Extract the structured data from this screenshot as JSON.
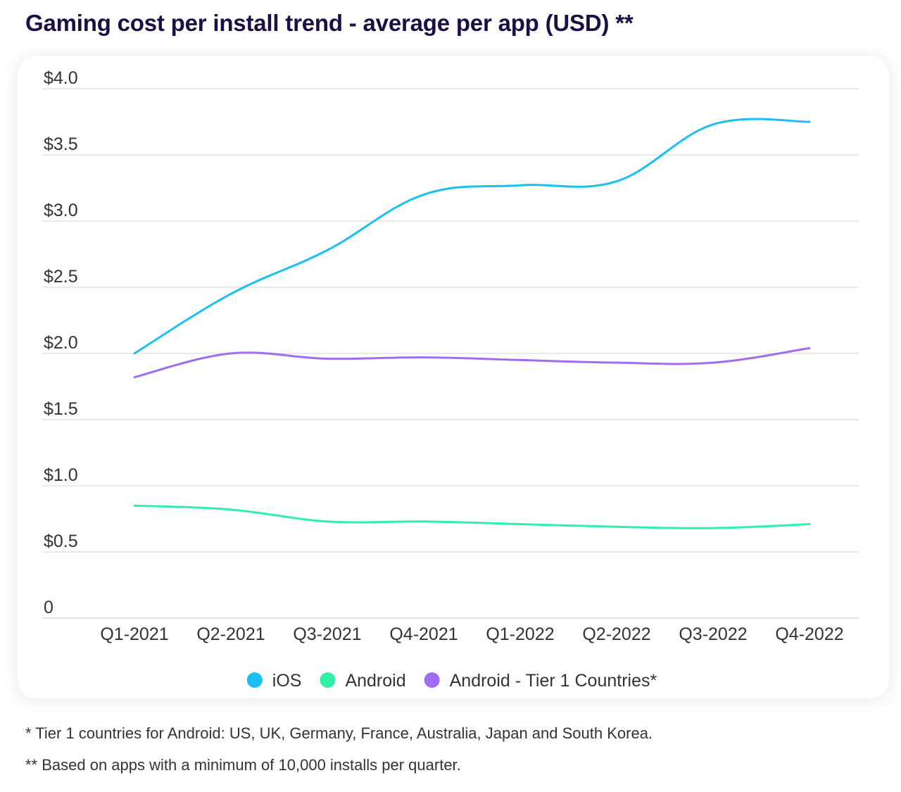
{
  "title": "Gaming cost per install trend - average per app (USD) **",
  "footnotes": [
    "* Tier 1 countries for Android: US, UK, Germany, France, Australia, Japan and South Korea.",
    "** Based on apps with a minimum of 10,000 installs per quarter."
  ],
  "chart_data": {
    "type": "line",
    "title": "",
    "xlabel": "",
    "ylabel": "",
    "categories": [
      "Q1-2021",
      "Q2-2021",
      "Q3-2021",
      "Q4-2021",
      "Q1-2022",
      "Q2-2022",
      "Q3-2022",
      "Q4-2022"
    ],
    "yticks": [
      0,
      0.5,
      1.0,
      1.5,
      2.0,
      2.5,
      3.0,
      3.5,
      4.0
    ],
    "ytick_labels": [
      "0",
      "$0.5",
      "$1.0",
      "$1.5",
      "$2.0",
      "$2.5",
      "$3.0",
      "$3.5",
      "$4.0"
    ],
    "ylim": [
      0,
      4.0
    ],
    "grid": true,
    "legend_position": "bottom-center",
    "series": [
      {
        "name": "iOS",
        "color": "#19c0f0",
        "values": [
          2.0,
          2.45,
          2.78,
          3.2,
          3.27,
          3.3,
          3.73,
          3.75
        ]
      },
      {
        "name": "Android",
        "color": "#2ff0a8",
        "values": [
          0.85,
          0.82,
          0.73,
          0.73,
          0.71,
          0.69,
          0.68,
          0.71
        ]
      },
      {
        "name": "Android - Tier 1 Countries*",
        "color": "#a06cf2",
        "values": [
          1.82,
          2.0,
          1.96,
          1.97,
          1.95,
          1.93,
          1.93,
          2.04
        ]
      }
    ]
  }
}
